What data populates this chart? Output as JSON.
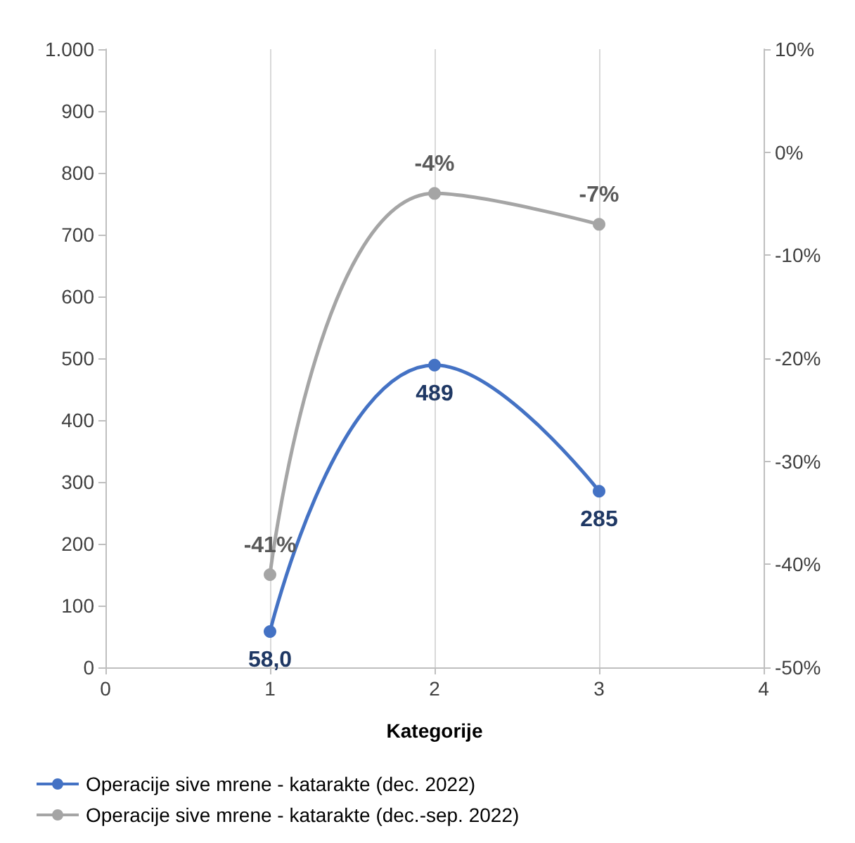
{
  "chart_data": {
    "type": "line",
    "xlabel": "Kategorije",
    "x": [
      1,
      2,
      3
    ],
    "xlim": [
      0,
      4
    ],
    "xticks": [
      0,
      1,
      2,
      3,
      4
    ],
    "ylim": [
      0,
      1000
    ],
    "yticks": [
      0,
      100,
      200,
      300,
      400,
      500,
      600,
      700,
      800,
      900,
      {
        "value": 1000,
        "label": "1.000"
      }
    ],
    "y2lim": [
      -50,
      10
    ],
    "y2ticks": [
      {
        "value": -50,
        "label": "-50%"
      },
      {
        "value": -40,
        "label": "-40%"
      },
      {
        "value": -30,
        "label": "-30%"
      },
      {
        "value": -20,
        "label": "-20%"
      },
      {
        "value": -10,
        "label": "-10%"
      },
      {
        "value": 0,
        "label": "0%"
      },
      {
        "value": 10,
        "label": "10%"
      }
    ],
    "series": [
      {
        "name": "Operacije sive mrene - katarakte (dec. 2022)",
        "color": "#4472c4",
        "values": [
          58.0,
          489,
          285
        ],
        "value_labels": [
          "58,0",
          "489",
          "285"
        ]
      },
      {
        "name": "Operacije sive mrene - katarakte (dec.-sep. 2022)",
        "color": "#a5a5a5",
        "values": [
          -41,
          -4,
          -7
        ],
        "value_labels": [
          "-41%",
          "-4%",
          "-7%"
        ],
        "axis": "y2"
      }
    ],
    "grid": "x",
    "legend": "bottom",
    "marker": "circle",
    "line_style": "solid"
  }
}
